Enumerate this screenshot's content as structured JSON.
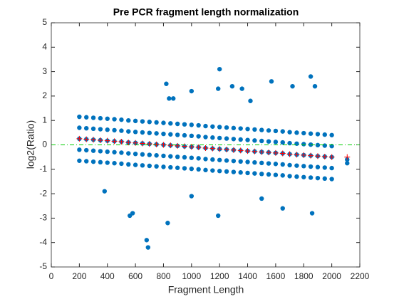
{
  "chart_data": {
    "type": "scatter",
    "title": "Pre PCR fragment length normalization",
    "x_label": "Fragment Length",
    "y_label": "log2(Ratio)",
    "xlim": [
      0,
      2200
    ],
    "ylim": [
      -5,
      5
    ],
    "xticks": [
      0,
      200,
      400,
      600,
      800,
      1000,
      1200,
      1400,
      1600,
      1800,
      2000,
      2200
    ],
    "yticks": [
      -5,
      -4,
      -3,
      -2,
      -1,
      0,
      1,
      2,
      3,
      4,
      5
    ],
    "reference_line": {
      "value": 0,
      "color": "#00cc00"
    },
    "series": [
      {
        "color": "#0072bd",
        "marker": "dot",
        "x": [
          200,
          250,
          300,
          350,
          400,
          450,
          500,
          550,
          600,
          650,
          700,
          750,
          800,
          850,
          900,
          950,
          1000,
          1050,
          1100,
          1150,
          1200,
          1250,
          1300,
          1350,
          1400,
          1450,
          1500,
          1550,
          1600,
          1650,
          1700,
          1750,
          1800,
          1850,
          1900,
          1950,
          2000,
          200,
          250,
          300,
          350,
          400,
          450,
          500,
          550,
          600,
          650,
          700,
          750,
          800,
          850,
          900,
          950,
          1000,
          1050,
          1100,
          1150,
          1200,
          1250,
          1300,
          1350,
          1400,
          1450,
          1500,
          1550,
          1600,
          1650,
          1700,
          1750,
          1800,
          1850,
          1900,
          1950,
          2000,
          200,
          250,
          300,
          350,
          400,
          450,
          500,
          550,
          600,
          650,
          700,
          750,
          800,
          850,
          900,
          950,
          1000,
          1050,
          1100,
          1150,
          1200,
          1250,
          1300,
          1350,
          1400,
          1450,
          1500,
          1550,
          1600,
          1650,
          1700,
          1750,
          1800,
          1850,
          1900,
          1950,
          2000,
          200,
          250,
          300,
          350,
          400,
          450,
          500,
          550,
          600,
          650,
          700,
          750,
          800,
          850,
          900,
          950,
          1000,
          1050,
          1100,
          1150,
          1200,
          1250,
          1300,
          1350,
          1400,
          1450,
          1500,
          1550,
          1600,
          1650,
          1700,
          1750,
          1800,
          1850,
          1900,
          1950,
          2000,
          200,
          250,
          300,
          350,
          400,
          450,
          500,
          550,
          600,
          650,
          700,
          750,
          800,
          850,
          900,
          950,
          1000,
          1050,
          1100,
          1150,
          1200,
          1250,
          1300,
          1350,
          1400,
          1450,
          1500,
          1550,
          1600,
          1650,
          1700,
          1750,
          1800,
          1850,
          1900,
          1950,
          2000,
          820,
          1000,
          1200,
          1190,
          1290,
          1360,
          1570,
          1720,
          1850,
          1880,
          1420,
          840,
          870,
          560,
          580,
          680,
          690,
          830,
          1190,
          1650,
          1860,
          380,
          2110,
          2110,
          1000,
          1500
        ],
        "values": [
          1.15,
          1.13,
          1.11,
          1.09,
          1.07,
          1.05,
          1.03,
          1.0,
          0.98,
          0.96,
          0.94,
          0.92,
          0.9,
          0.88,
          0.86,
          0.84,
          0.82,
          0.8,
          0.77,
          0.75,
          0.73,
          0.71,
          0.69,
          0.67,
          0.65,
          0.63,
          0.61,
          0.59,
          0.57,
          0.55,
          0.52,
          0.5,
          0.48,
          0.46,
          0.44,
          0.42,
          0.4,
          0.7,
          0.68,
          0.66,
          0.64,
          0.62,
          0.6,
          0.58,
          0.55,
          0.53,
          0.51,
          0.49,
          0.47,
          0.45,
          0.43,
          0.41,
          0.39,
          0.37,
          0.35,
          0.32,
          0.3,
          0.28,
          0.26,
          0.24,
          0.22,
          0.2,
          0.18,
          0.16,
          0.14,
          0.12,
          0.1,
          0.07,
          0.05,
          0.03,
          0.01,
          -0.01,
          -0.03,
          -0.05,
          0.25,
          0.23,
          0.21,
          0.19,
          0.17,
          0.15,
          0.13,
          0.1,
          0.08,
          0.06,
          0.04,
          0.02,
          0,
          -0.02,
          -0.04,
          -0.06,
          -0.08,
          -0.1,
          -0.13,
          -0.15,
          -0.17,
          -0.19,
          -0.21,
          -0.23,
          -0.25,
          -0.27,
          -0.29,
          -0.31,
          -0.33,
          -0.35,
          -0.38,
          -0.4,
          -0.42,
          -0.44,
          -0.46,
          -0.48,
          -0.5,
          -0.2,
          -0.22,
          -0.24,
          -0.26,
          -0.28,
          -0.3,
          -0.32,
          -0.35,
          -0.37,
          -0.39,
          -0.41,
          -0.43,
          -0.45,
          -0.47,
          -0.49,
          -0.51,
          -0.53,
          -0.55,
          -0.58,
          -0.6,
          -0.62,
          -0.64,
          -0.66,
          -0.68,
          -0.7,
          -0.72,
          -0.74,
          -0.76,
          -0.78,
          -0.8,
          -0.83,
          -0.85,
          -0.87,
          -0.89,
          -0.91,
          -0.93,
          -0.95,
          -0.65,
          -0.67,
          -0.69,
          -0.71,
          -0.73,
          -0.75,
          -0.77,
          -0.8,
          -0.82,
          -0.84,
          -0.86,
          -0.88,
          -0.9,
          -0.92,
          -0.94,
          -0.96,
          -0.98,
          -1.0,
          -1.03,
          -1.05,
          -1.07,
          -1.09,
          -1.11,
          -1.13,
          -1.15,
          -1.17,
          -1.19,
          -1.21,
          -1.23,
          -1.25,
          -1.28,
          -1.3,
          -1.32,
          -1.34,
          -1.36,
          -1.38,
          -1.4,
          2.5,
          2.2,
          3.1,
          2.3,
          2.4,
          2.3,
          2.6,
          2.4,
          2.8,
          2.4,
          1.8,
          1.9,
          1.9,
          -2.9,
          -2.8,
          -3.9,
          -4.2,
          -3.2,
          -2.9,
          -2.6,
          -2.8,
          -1.9,
          -0.75,
          -0.6,
          -2.1,
          -2.2
        ]
      },
      {
        "color": "#ff0000",
        "marker": "plus",
        "x": [
          200,
          250,
          300,
          350,
          400,
          450,
          500,
          550,
          600,
          650,
          700,
          750,
          800,
          850,
          900,
          950,
          1000,
          1050,
          1100,
          1150,
          1200,
          1250,
          1300,
          1350,
          1400,
          1450,
          1500,
          1550,
          1600,
          1650,
          1700,
          1750,
          1800,
          1850,
          1900,
          1950,
          2000,
          2110
        ],
        "values": [
          0.25,
          0.23,
          0.21,
          0.19,
          0.17,
          0.15,
          0.13,
          0.1,
          0.08,
          0.06,
          0.04,
          0.02,
          0,
          -0.02,
          -0.04,
          -0.06,
          -0.08,
          -0.1,
          -0.13,
          -0.15,
          -0.17,
          -0.19,
          -0.21,
          -0.23,
          -0.25,
          -0.27,
          -0.29,
          -0.31,
          -0.33,
          -0.35,
          -0.38,
          -0.4,
          -0.42,
          -0.44,
          -0.46,
          -0.48,
          -0.5,
          -0.5
        ]
      }
    ]
  }
}
